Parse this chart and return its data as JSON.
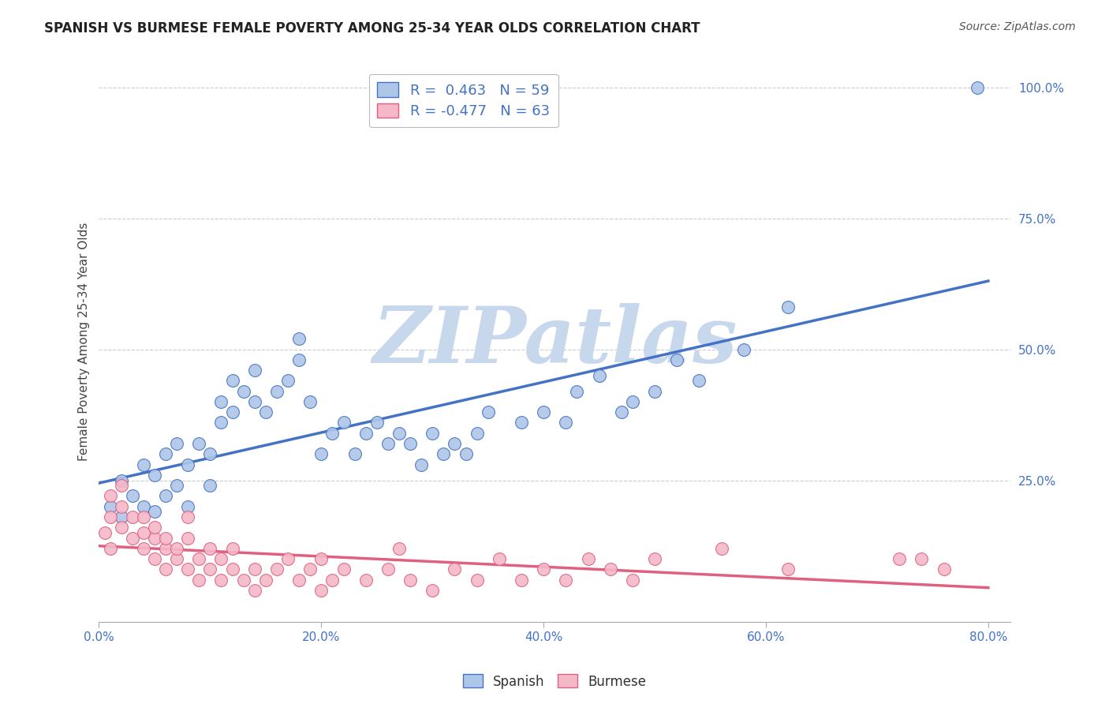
{
  "title": "SPANISH VS BURMESE FEMALE POVERTY AMONG 25-34 YEAR OLDS CORRELATION CHART",
  "source": "Source: ZipAtlas.com",
  "ylabel": "Female Poverty Among 25-34 Year Olds",
  "xlim": [
    0.0,
    0.82
  ],
  "ylim": [
    -0.02,
    1.05
  ],
  "xtick_vals": [
    0.0,
    0.2,
    0.4,
    0.6,
    0.8
  ],
  "xtick_labels": [
    "0.0%",
    "20.0%",
    "40.0%",
    "60.0%",
    "80.0%"
  ],
  "ytick_vals": [
    0.25,
    0.5,
    0.75,
    1.0
  ],
  "ytick_labels": [
    "25.0%",
    "50.0%",
    "75.0%",
    "100.0%"
  ],
  "spanish_color": "#aec6e8",
  "burmese_color": "#f4b8c8",
  "spanish_edge_color": "#4472c4",
  "burmese_edge_color": "#e06080",
  "spanish_line_color": "#4472c4",
  "burmese_line_color": "#e06080",
  "spanish_R": 0.463,
  "spanish_N": 59,
  "burmese_R": -0.477,
  "burmese_N": 63,
  "watermark": "ZIPatlas",
  "watermark_color": "#c8d8ec",
  "label_color": "#4472c4",
  "title_color": "#222222",
  "source_color": "#555555",
  "spanish_points_x": [
    0.01,
    0.02,
    0.02,
    0.03,
    0.04,
    0.04,
    0.05,
    0.05,
    0.06,
    0.06,
    0.07,
    0.07,
    0.08,
    0.08,
    0.09,
    0.1,
    0.1,
    0.11,
    0.11,
    0.12,
    0.12,
    0.13,
    0.14,
    0.14,
    0.15,
    0.16,
    0.17,
    0.18,
    0.18,
    0.19,
    0.2,
    0.21,
    0.22,
    0.23,
    0.24,
    0.25,
    0.26,
    0.27,
    0.28,
    0.29,
    0.3,
    0.31,
    0.32,
    0.33,
    0.34,
    0.35,
    0.38,
    0.4,
    0.42,
    0.43,
    0.45,
    0.47,
    0.48,
    0.5,
    0.52,
    0.54,
    0.58,
    0.62,
    0.79
  ],
  "spanish_points_y": [
    0.2,
    0.18,
    0.25,
    0.22,
    0.2,
    0.28,
    0.19,
    0.26,
    0.22,
    0.3,
    0.32,
    0.24,
    0.2,
    0.28,
    0.32,
    0.24,
    0.3,
    0.36,
    0.4,
    0.38,
    0.44,
    0.42,
    0.4,
    0.46,
    0.38,
    0.42,
    0.44,
    0.48,
    0.52,
    0.4,
    0.3,
    0.34,
    0.36,
    0.3,
    0.34,
    0.36,
    0.32,
    0.34,
    0.32,
    0.28,
    0.34,
    0.3,
    0.32,
    0.3,
    0.34,
    0.38,
    0.36,
    0.38,
    0.36,
    0.42,
    0.45,
    0.38,
    0.4,
    0.42,
    0.48,
    0.44,
    0.5,
    0.58,
    1.0
  ],
  "burmese_points_x": [
    0.005,
    0.01,
    0.01,
    0.01,
    0.02,
    0.02,
    0.02,
    0.03,
    0.03,
    0.04,
    0.04,
    0.04,
    0.05,
    0.05,
    0.05,
    0.06,
    0.06,
    0.06,
    0.07,
    0.07,
    0.08,
    0.08,
    0.08,
    0.09,
    0.09,
    0.1,
    0.1,
    0.11,
    0.11,
    0.12,
    0.12,
    0.13,
    0.14,
    0.14,
    0.15,
    0.16,
    0.17,
    0.18,
    0.19,
    0.2,
    0.2,
    0.21,
    0.22,
    0.24,
    0.26,
    0.27,
    0.28,
    0.3,
    0.32,
    0.34,
    0.36,
    0.38,
    0.4,
    0.42,
    0.44,
    0.46,
    0.48,
    0.5,
    0.56,
    0.62,
    0.72,
    0.74,
    0.76
  ],
  "burmese_points_y": [
    0.15,
    0.12,
    0.18,
    0.22,
    0.16,
    0.2,
    0.24,
    0.18,
    0.14,
    0.15,
    0.12,
    0.18,
    0.14,
    0.1,
    0.16,
    0.12,
    0.08,
    0.14,
    0.1,
    0.12,
    0.08,
    0.14,
    0.18,
    0.1,
    0.06,
    0.08,
    0.12,
    0.1,
    0.06,
    0.08,
    0.12,
    0.06,
    0.08,
    0.04,
    0.06,
    0.08,
    0.1,
    0.06,
    0.08,
    0.04,
    0.1,
    0.06,
    0.08,
    0.06,
    0.08,
    0.12,
    0.06,
    0.04,
    0.08,
    0.06,
    0.1,
    0.06,
    0.08,
    0.06,
    0.1,
    0.08,
    0.06,
    0.1,
    0.12,
    0.08,
    0.1,
    0.1,
    0.08
  ]
}
